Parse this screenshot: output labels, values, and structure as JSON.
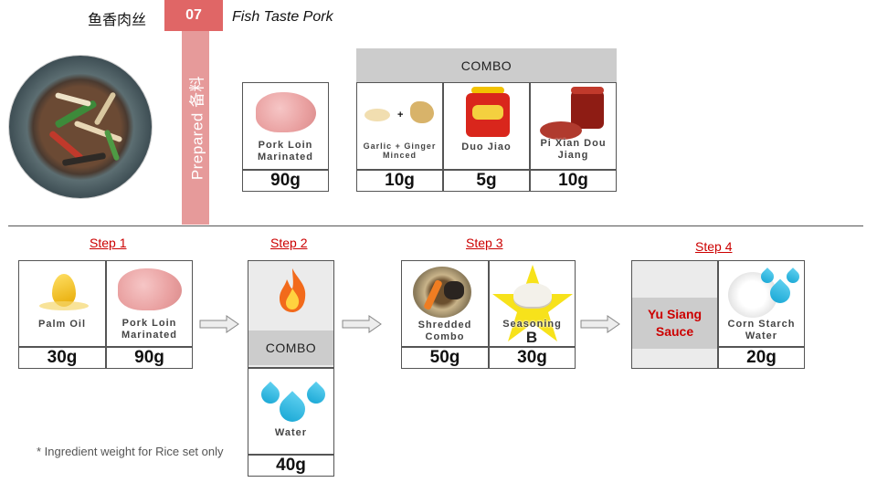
{
  "header": {
    "title_zh": "鱼香肉丝",
    "number": "07",
    "title_en": "Fish Taste Pork"
  },
  "prepared_label": "Prepared 备料",
  "prepared": {
    "combo_label": "COMBO",
    "pork": {
      "label": "Pork Loin Marinated",
      "weight": "90g"
    },
    "combo_items": [
      {
        "label": "Garlic + Ginger Minced",
        "weight": "10g"
      },
      {
        "label": "Duo Jiao",
        "weight": "5g"
      },
      {
        "label": "Pi Xian Dou Jiang",
        "weight": "10g"
      }
    ]
  },
  "steps": [
    {
      "title": "Step 1",
      "items": [
        {
          "label": "Palm Oil",
          "weight": "30g"
        },
        {
          "label": "Pork Loin Marinated",
          "weight": "90g"
        }
      ]
    },
    {
      "title": "Step 2",
      "combo_label": "COMBO",
      "water": {
        "label": "Water",
        "weight": "40g"
      }
    },
    {
      "title": "Step 3",
      "items": [
        {
          "label": "Shredded Combo",
          "weight": "50g"
        },
        {
          "label": "Seasoning",
          "sub": "B",
          "weight": "30g"
        }
      ]
    },
    {
      "title": "Step 4",
      "sauce": "Yu Siang Sauce",
      "items": [
        {
          "label": "Corn Starch Water",
          "weight": "20g"
        }
      ]
    }
  ],
  "icons": {
    "plus": "+"
  },
  "footnote": "* Ingredient weight for Rice set only",
  "colors": {
    "accent_red": "#e06666",
    "prepared_pink": "#e69a9a",
    "step_red": "#cc0000",
    "combo_grey": "#cccccc"
  }
}
